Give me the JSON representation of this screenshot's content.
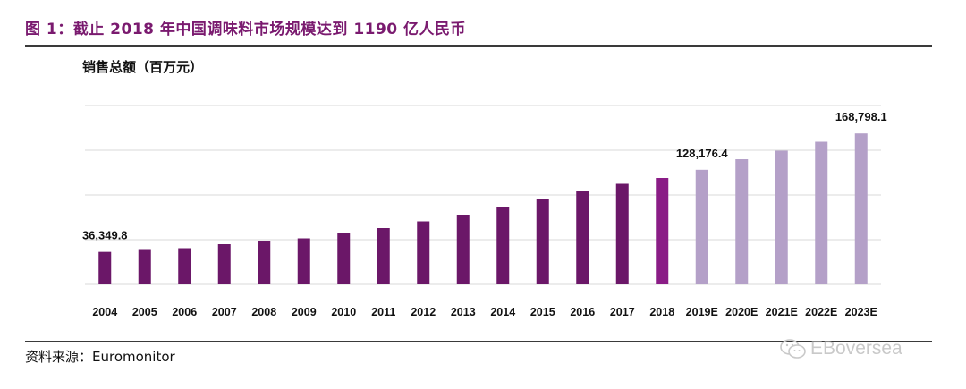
{
  "header": {
    "title": "图 1：截止 2018 年中国调味料市场规模达到 1190 亿人民币"
  },
  "footer": {
    "source": "资料来源：Euromonitor",
    "watermark_text": "EBoversea",
    "watermark_icon": "wechat-icon"
  },
  "colors": {
    "title": "#7a1a6f",
    "actual_bar": "#6b1768",
    "actual_bar_last": "#8a1c86",
    "estimate_bar": "#b4a0c8",
    "grid": "#d9d9d9"
  },
  "chart_data": {
    "type": "bar",
    "ylabel": "销售总额（百万元）",
    "xlabel": "",
    "ylim": [
      0,
      200000
    ],
    "grid": true,
    "categories": [
      "2004",
      "2005",
      "2006",
      "2007",
      "2008",
      "2009",
      "2010",
      "2011",
      "2012",
      "2013",
      "2014",
      "2015",
      "2016",
      "2017",
      "2018",
      "2019E",
      "2020E",
      "2021E",
      "2022E",
      "2023E"
    ],
    "series": [
      {
        "values": [
          36349.8,
          38500,
          40500,
          45000,
          48500,
          51500,
          57000,
          63000,
          70500,
          78000,
          87000,
          96000,
          104000,
          112500,
          119000,
          128176.4,
          140000,
          149500,
          159500,
          168798.1
        ]
      }
    ],
    "estimate_from_index": 15,
    "data_labels": [
      {
        "index": 0,
        "text": "36,349.8"
      },
      {
        "index": 15,
        "text": "128,176.4"
      },
      {
        "index": 19,
        "text": "168,798.1"
      }
    ]
  }
}
